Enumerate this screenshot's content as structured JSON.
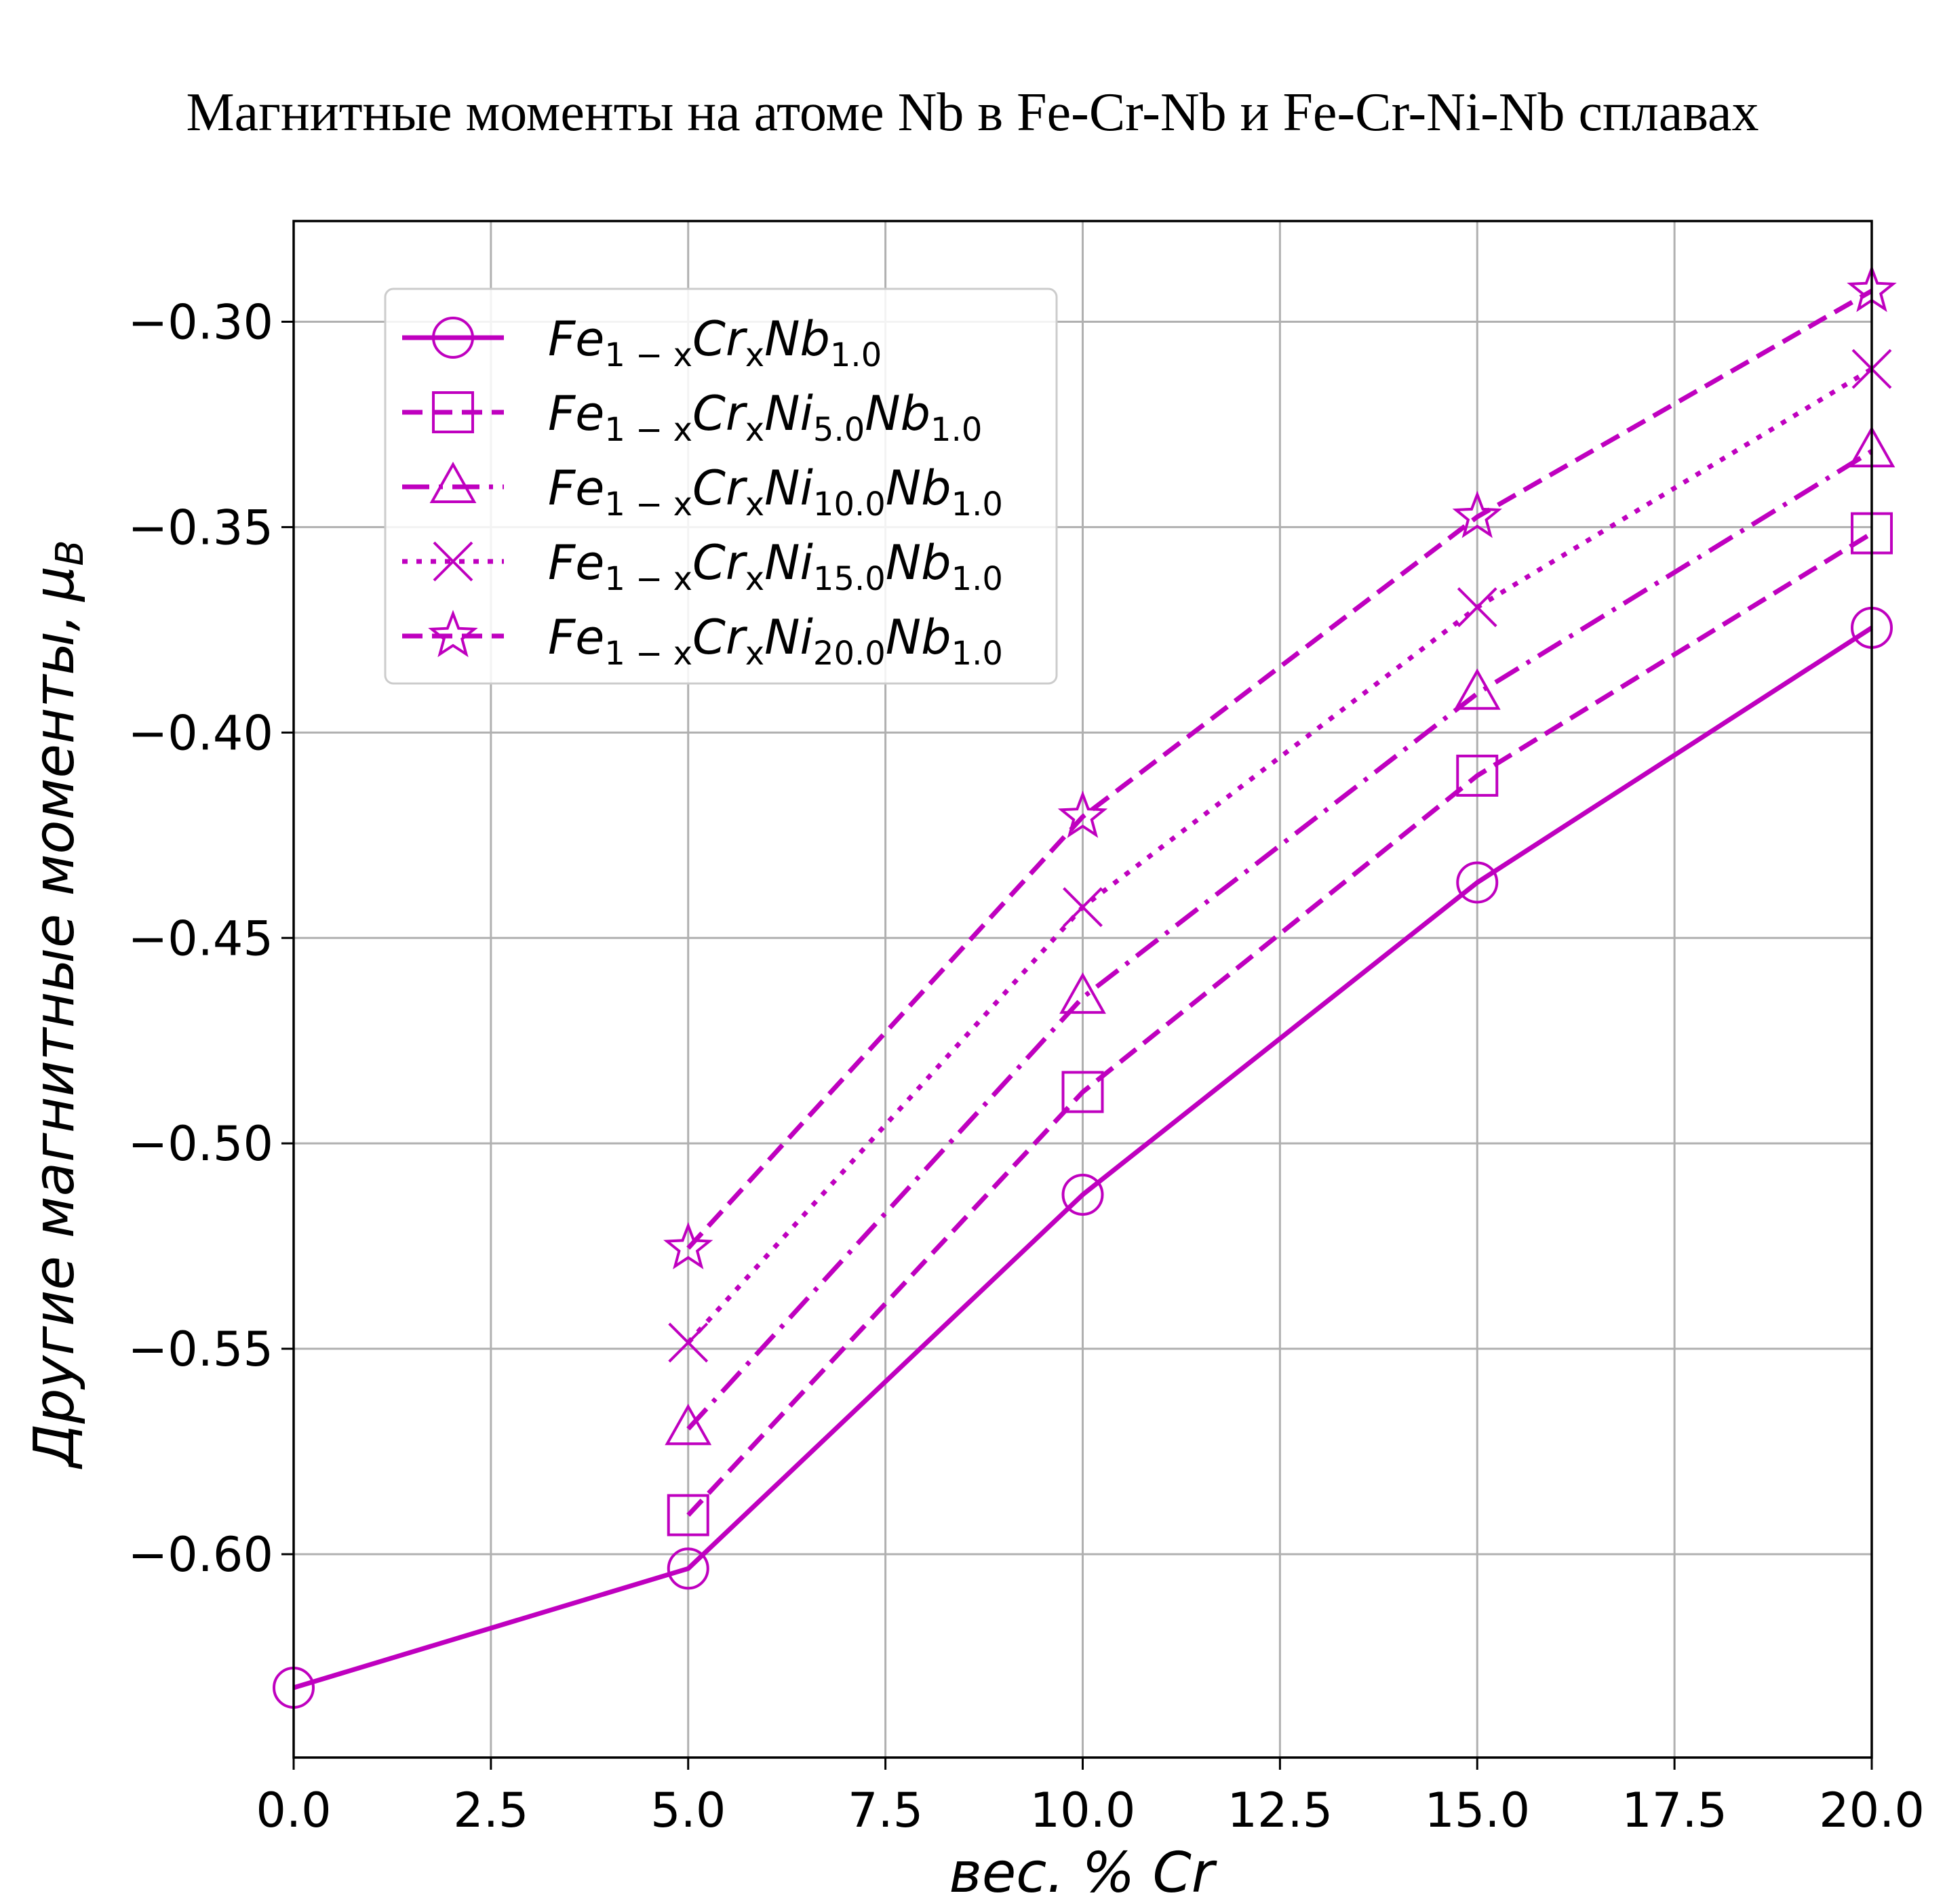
{
  "chart_data": {
    "type": "line",
    "title": "Магнитные моменты на атоме Nb в Fe-Cr-Nb и Fe-Cr-Ni-Nb сплавах",
    "xlabel": "вес. % Cr",
    "ylabel": "Другие магнитные моменты,",
    "ylabel_unit": "μ",
    "ylabel_unit_sub": "B",
    "xlim": [
      0,
      20
    ],
    "ylim": [
      -0.6495,
      -0.2755
    ],
    "x_ticks": [
      0,
      2.5,
      5,
      7.5,
      10,
      12.5,
      15,
      17.5,
      20
    ],
    "x_tick_labels": [
      "0.0",
      "2.5",
      "5.0",
      "7.5",
      "10.0",
      "12.5",
      "15.0",
      "17.5",
      "20.0"
    ],
    "y_ticks": [
      -0.6,
      -0.55,
      -0.5,
      -0.45,
      -0.4,
      -0.35,
      -0.3
    ],
    "y_tick_labels": [
      "−0.60",
      "−0.55",
      "−0.50",
      "−0.45",
      "−0.40",
      "−0.35",
      "−0.30"
    ],
    "grid": true,
    "legend_position": "upper-left",
    "color": "#bf00bf",
    "series": [
      {
        "name_parts": [
          {
            "t": "Fe",
            "s": "normal"
          },
          {
            "t": "1 − x",
            "s": "sub"
          },
          {
            "t": "Cr",
            "s": "normal"
          },
          {
            "t": "x",
            "s": "sub"
          },
          {
            "t": "Nb",
            "s": "normal"
          },
          {
            "t": "1.0",
            "s": "sub"
          }
        ],
        "marker": "circle",
        "linestyle": "solid",
        "x": [
          0,
          5,
          10,
          15,
          20
        ],
        "y": [
          -0.6325,
          -0.6035,
          -0.5125,
          -0.4365,
          -0.3745
        ]
      },
      {
        "name_parts": [
          {
            "t": "Fe",
            "s": "normal"
          },
          {
            "t": "1 − x",
            "s": "sub"
          },
          {
            "t": "Cr",
            "s": "normal"
          },
          {
            "t": "x",
            "s": "sub"
          },
          {
            "t": "Ni",
            "s": "normal"
          },
          {
            "t": "5.0",
            "s": "sub"
          },
          {
            "t": "Nb",
            "s": "normal"
          },
          {
            "t": "1.0",
            "s": "sub"
          }
        ],
        "marker": "square",
        "linestyle": "dashed",
        "x": [
          5,
          10,
          15,
          20
        ],
        "y": [
          -0.5905,
          -0.4875,
          -0.4105,
          -0.3515
        ]
      },
      {
        "name_parts": [
          {
            "t": "Fe",
            "s": "normal"
          },
          {
            "t": "1 − x",
            "s": "sub"
          },
          {
            "t": "Cr",
            "s": "normal"
          },
          {
            "t": "x",
            "s": "sub"
          },
          {
            "t": "Ni",
            "s": "normal"
          },
          {
            "t": "10.0",
            "s": "sub"
          },
          {
            "t": "Nb",
            "s": "normal"
          },
          {
            "t": "1.0",
            "s": "sub"
          }
        ],
        "marker": "triangle",
        "linestyle": "dashdot",
        "x": [
          5,
          10,
          15,
          20
        ],
        "y": [
          -0.5695,
          -0.4645,
          -0.3905,
          -0.3315
        ]
      },
      {
        "name_parts": [
          {
            "t": "Fe",
            "s": "normal"
          },
          {
            "t": "1 − x",
            "s": "sub"
          },
          {
            "t": "Cr",
            "s": "normal"
          },
          {
            "t": "x",
            "s": "sub"
          },
          {
            "t": "Ni",
            "s": "normal"
          },
          {
            "t": "15.0",
            "s": "sub"
          },
          {
            "t": "Nb",
            "s": "normal"
          },
          {
            "t": "1.0",
            "s": "sub"
          }
        ],
        "marker": "x",
        "linestyle": "dotted",
        "x": [
          5,
          10,
          15,
          20
        ],
        "y": [
          -0.5485,
          -0.4425,
          -0.3695,
          -0.3115
        ]
      },
      {
        "name_parts": [
          {
            "t": "Fe",
            "s": "normal"
          },
          {
            "t": "1 − x",
            "s": "sub"
          },
          {
            "t": "Cr",
            "s": "normal"
          },
          {
            "t": "x",
            "s": "sub"
          },
          {
            "t": "Ni",
            "s": "normal"
          },
          {
            "t": "20.0",
            "s": "sub"
          },
          {
            "t": "Nb",
            "s": "normal"
          },
          {
            "t": "1.0",
            "s": "sub"
          }
        ],
        "marker": "star",
        "linestyle": "dashed",
        "x": [
          5,
          10,
          15,
          20
        ],
        "y": [
          -0.5255,
          -0.4205,
          -0.3475,
          -0.2925
        ]
      }
    ]
  }
}
